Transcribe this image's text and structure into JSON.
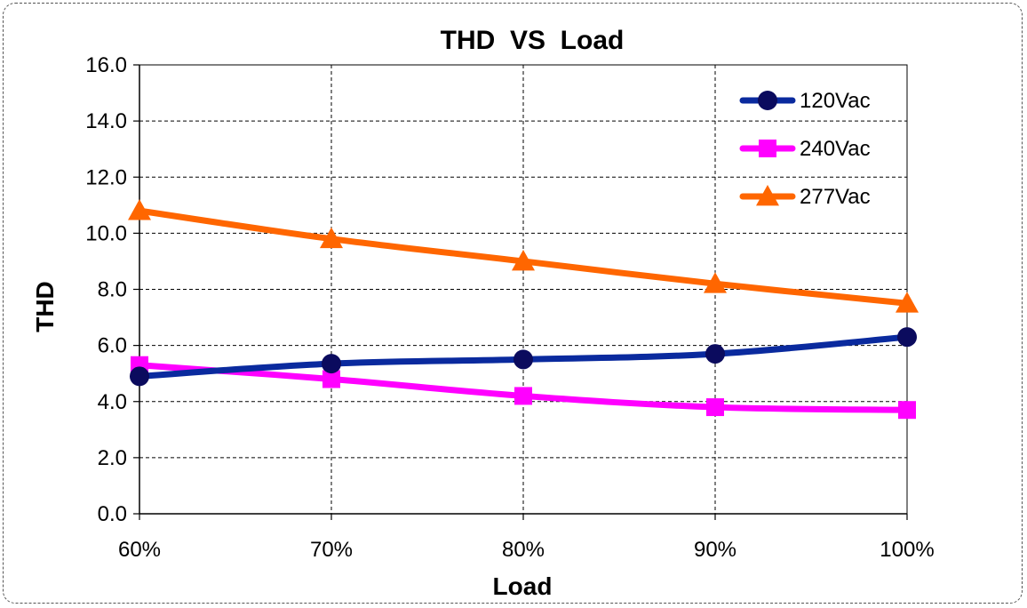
{
  "chart_data": {
    "type": "line",
    "title": "THD  VS  Load",
    "xlabel": "Load",
    "ylabel": "THD",
    "categories": [
      "60%",
      "70%",
      "80%",
      "90%",
      "100%"
    ],
    "ylim": [
      0,
      16
    ],
    "yticks": [
      "0.0",
      "2.0",
      "4.0",
      "6.0",
      "8.0",
      "10.0",
      "12.0",
      "14.0",
      "16.0"
    ],
    "grid": true,
    "legend_position": "top-right",
    "series": [
      {
        "name": "120Vac",
        "values": [
          4.9,
          5.35,
          5.5,
          5.7,
          6.3
        ],
        "color": "#0a2a9e",
        "marker": "circle",
        "marker_color": "#0b0b5e"
      },
      {
        "name": "240Vac",
        "values": [
          5.3,
          4.8,
          4.2,
          3.8,
          3.7
        ],
        "color": "#ff00ff",
        "marker": "square",
        "marker_color": "#ff00ff"
      },
      {
        "name": "277Vac",
        "values": [
          10.8,
          9.8,
          9.0,
          8.2,
          7.5
        ],
        "color": "#ff6600",
        "marker": "triangle",
        "marker_color": "#ff6600"
      }
    ]
  }
}
